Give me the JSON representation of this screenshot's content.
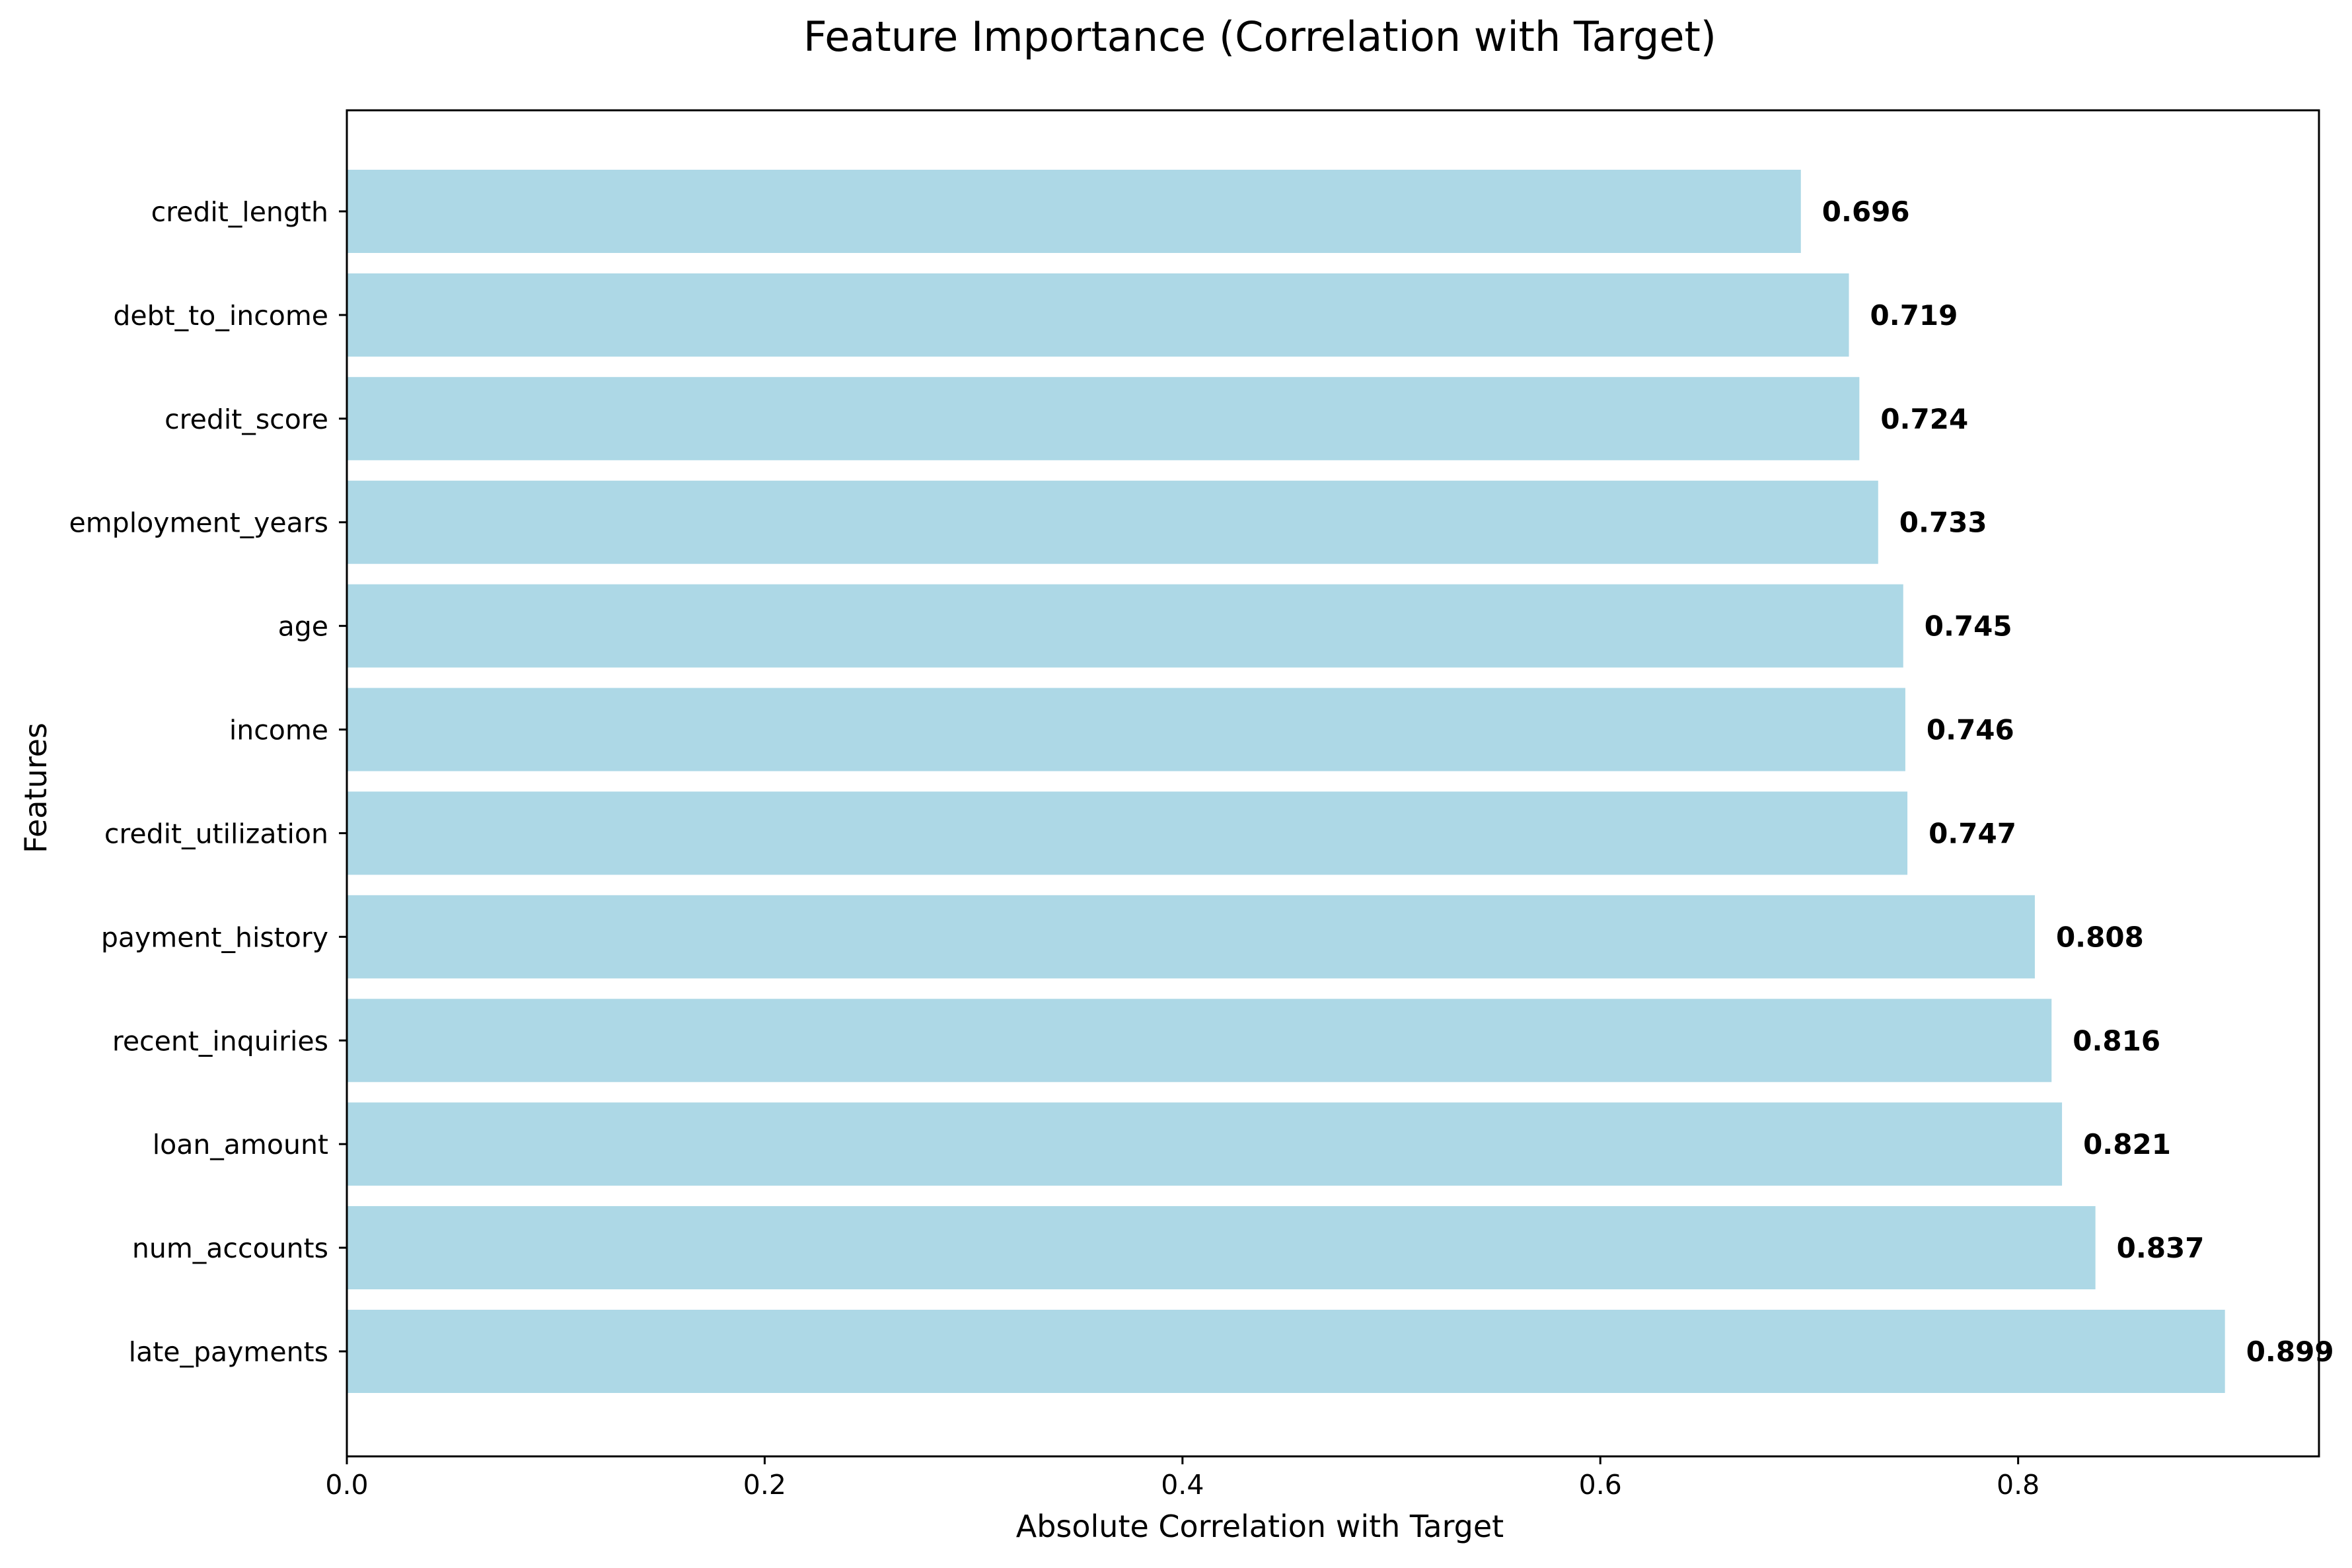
{
  "chart_data": {
    "type": "bar",
    "orientation": "horizontal",
    "title": "Feature Importance (Correlation with Target)",
    "xlabel": "Absolute Correlation with Target",
    "ylabel": "Features",
    "categories": [
      "late_payments",
      "num_accounts",
      "loan_amount",
      "recent_inquiries",
      "payment_history",
      "credit_utilization",
      "income",
      "age",
      "employment_years",
      "credit_score",
      "debt_to_income",
      "credit_length"
    ],
    "values": [
      0.899,
      0.837,
      0.821,
      0.816,
      0.808,
      0.747,
      0.746,
      0.745,
      0.733,
      0.724,
      0.719,
      0.696
    ],
    "value_labels": [
      "0.899",
      "0.837",
      "0.821",
      "0.816",
      "0.808",
      "0.747",
      "0.746",
      "0.745",
      "0.733",
      "0.724",
      "0.719",
      "0.696"
    ],
    "xlim": [
      0,
      0.944
    ],
    "xticks": [
      0.0,
      0.2,
      0.4,
      0.6,
      0.8
    ],
    "xtick_labels": [
      "0.0",
      "0.2",
      "0.4",
      "0.6",
      "0.8"
    ],
    "bar_color": "#add8e6",
    "grid": false,
    "legend": "none"
  }
}
